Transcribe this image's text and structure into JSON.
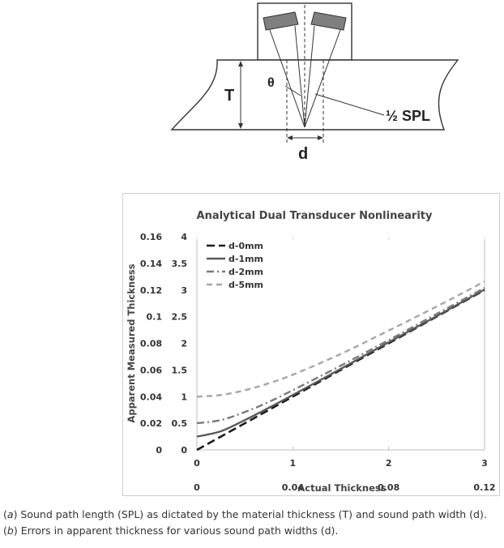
{
  "diagram": {
    "labels": {
      "thickness": "T",
      "theta": "θ",
      "half_spl": "½ SPL",
      "width": "d"
    }
  },
  "chart_data": {
    "type": "line",
    "title": "Analytical Dual Transducer Nonlinearity",
    "xlabel": "Actual Thickness",
    "ylabel": "Apparent Measured Thickness",
    "xlim": [
      0,
      3
    ],
    "ylim": [
      0,
      4
    ],
    "x_ticks_primary": [
      "0",
      "1",
      "2",
      "3"
    ],
    "x_ticks_secondary": [
      "0",
      "0.04",
      "0.08",
      "0.12"
    ],
    "y_ticks_primary": [
      "0",
      "0.5",
      "1",
      "1.5",
      "2",
      "2.5",
      "3",
      "3.5",
      "4"
    ],
    "y_ticks_secondary": [
      "0",
      "0.02",
      "0.04",
      "0.06",
      "0.08",
      "0.1",
      "0.12",
      "0.14",
      "0.16"
    ],
    "grid": false,
    "legend_position": "top-left",
    "series": [
      {
        "name": "d-0mm",
        "style": "long-dash",
        "color": "#1a1a1a",
        "x": [
          0,
          0.5,
          1,
          1.5,
          2,
          2.5,
          3
        ],
        "y": [
          0,
          0.5,
          1,
          1.5,
          2,
          2.5,
          3
        ]
      },
      {
        "name": "d-1mm",
        "style": "solid",
        "color": "#595959",
        "x": [
          0,
          0.25,
          0.5,
          0.75,
          1,
          1.5,
          2,
          2.5,
          3
        ],
        "y": [
          0.25,
          0.35,
          0.56,
          0.79,
          1.03,
          1.52,
          2.02,
          2.51,
          3.01
        ]
      },
      {
        "name": "d-2mm",
        "style": "dash-dot",
        "color": "#7a7a7a",
        "x": [
          0,
          0.25,
          0.5,
          0.75,
          1,
          1.5,
          2,
          2.5,
          3
        ],
        "y": [
          0.5,
          0.56,
          0.71,
          0.9,
          1.12,
          1.58,
          2.06,
          2.55,
          3.04
        ]
      },
      {
        "name": "d-5mm",
        "style": "dash",
        "color": "#a6a6a6",
        "x": [
          0,
          0.25,
          0.5,
          0.75,
          1,
          1.5,
          2,
          2.5,
          3
        ],
        "y": [
          1,
          1.03,
          1.12,
          1.25,
          1.41,
          1.8,
          2.24,
          2.69,
          3.16
        ]
      }
    ]
  },
  "captions": {
    "a_label": "(a)",
    "a_text": " Sound path length (SPL) as dictated by the material thickness (T) and sound path width (d).",
    "b_label": "(b)",
    "b_text": " Errors in apparent thickness for various sound path widths (d)."
  }
}
